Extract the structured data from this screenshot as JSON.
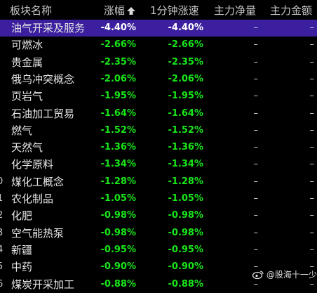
{
  "header": {
    "columns": [
      "板块名称",
      "涨幅",
      "1分钟涨速",
      "主力净量",
      "主力金额"
    ]
  },
  "table": {
    "rows": [
      {
        "name": "油气开采及服务",
        "change": "-4.40%",
        "speed": "-4.40%",
        "net": "–",
        "amount": "–"
      },
      {
        "name": "可燃冰",
        "change": "-2.66%",
        "speed": "-2.66%",
        "net": "–",
        "amount": "–"
      },
      {
        "name": "贵金属",
        "change": "-2.35%",
        "speed": "-2.35%",
        "net": "–",
        "amount": "–"
      },
      {
        "name": "俄乌冲突概念",
        "change": "-2.06%",
        "speed": "-2.06%",
        "net": "–",
        "amount": "–"
      },
      {
        "name": "页岩气",
        "change": "-1.95%",
        "speed": "-1.95%",
        "net": "–",
        "amount": "–"
      },
      {
        "name": "石油加工贸易",
        "change": "-1.64%",
        "speed": "-1.64%",
        "net": "–",
        "amount": "–"
      },
      {
        "name": "燃气",
        "change": "-1.52%",
        "speed": "-1.52%",
        "net": "–",
        "amount": "–"
      },
      {
        "name": "天然气",
        "change": "-1.36%",
        "speed": "-1.36%",
        "net": "–",
        "amount": "–"
      },
      {
        "name": "化学原料",
        "change": "-1.34%",
        "speed": "-1.34%",
        "net": "–",
        "amount": "–"
      },
      {
        "index": "0",
        "name": "煤化工概念",
        "change": "-1.28%",
        "speed": "-1.28%",
        "net": "–",
        "amount": "–"
      },
      {
        "index": "1",
        "name": "农化制品",
        "change": "-1.05%",
        "speed": "-1.05%",
        "net": "–",
        "amount": "–"
      },
      {
        "index": "2",
        "name": "化肥",
        "change": "-0.98%",
        "speed": "-0.98%",
        "net": "–",
        "amount": "–"
      },
      {
        "index": "3",
        "name": "空气能热泵",
        "change": "-0.98%",
        "speed": "-0.98%",
        "net": "–",
        "amount": "–"
      },
      {
        "index": "4",
        "name": "新疆",
        "change": "-0.95%",
        "speed": "-0.95%",
        "net": "–",
        "amount": "–"
      },
      {
        "index": "5",
        "name": "中药",
        "change": "-0.90%",
        "speed": "-0.90%",
        "net": "–",
        "amount": "–"
      },
      {
        "index": "6",
        "name": "煤炭开采加工",
        "change": "-0.88%",
        "speed": "-0.88%",
        "net": "–",
        "amount": "–"
      }
    ]
  },
  "watermark": "@股海十一少"
}
